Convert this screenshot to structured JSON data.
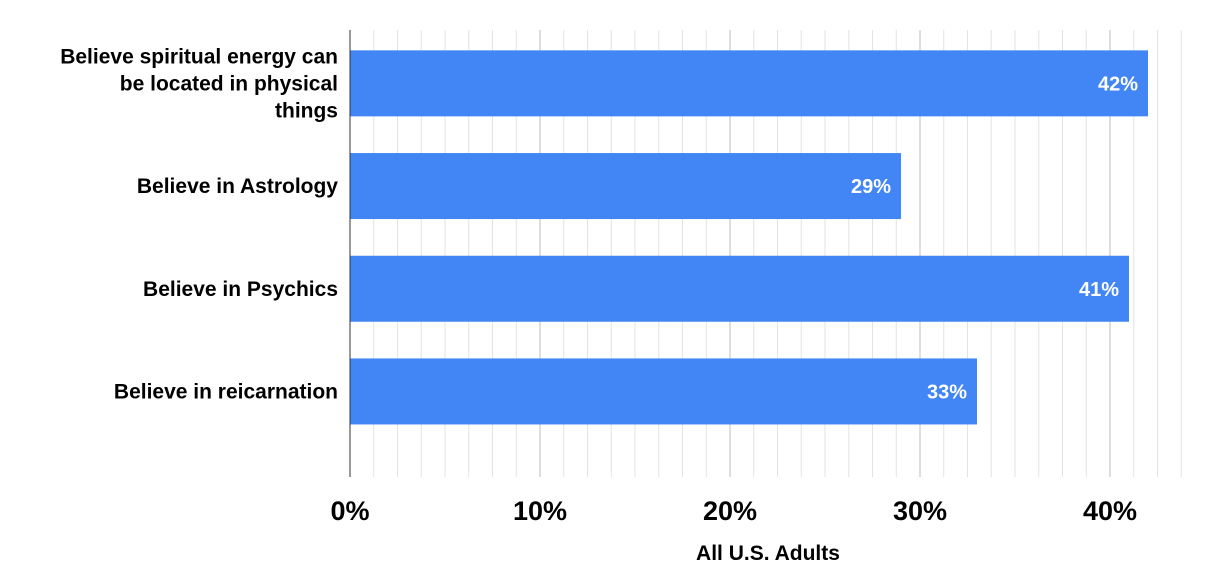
{
  "chart_data": {
    "type": "bar",
    "orientation": "horizontal",
    "categories": [
      "Believe spiritual energy can be located in physical things",
      "Believe in Astrology",
      "Believe in Psychics",
      "Believe in reicarnation"
    ],
    "category_lines": [
      [
        "Believe spiritual energy can",
        "be located in physical",
        "things"
      ],
      [
        "Believe in Astrology"
      ],
      [
        "Believe in Psychics"
      ],
      [
        "Believe in reicarnation"
      ]
    ],
    "values": [
      42,
      29,
      41,
      33
    ],
    "data_labels": [
      "42%",
      "29%",
      "41%",
      "33%"
    ],
    "xlabel": "All U.S. Adults",
    "ylabel": "",
    "xlim": [
      0,
      44
    ],
    "xticks": [
      0,
      10,
      20,
      30,
      40
    ],
    "xtick_labels": [
      "0%",
      "10%",
      "20%",
      "30%",
      "40%"
    ],
    "minor_grid_step": 1.25,
    "grid": true,
    "bar_color": "#4285f4",
    "gridline_color": "#e3e3e3",
    "major_gridline_color": "#bdbdbd"
  }
}
